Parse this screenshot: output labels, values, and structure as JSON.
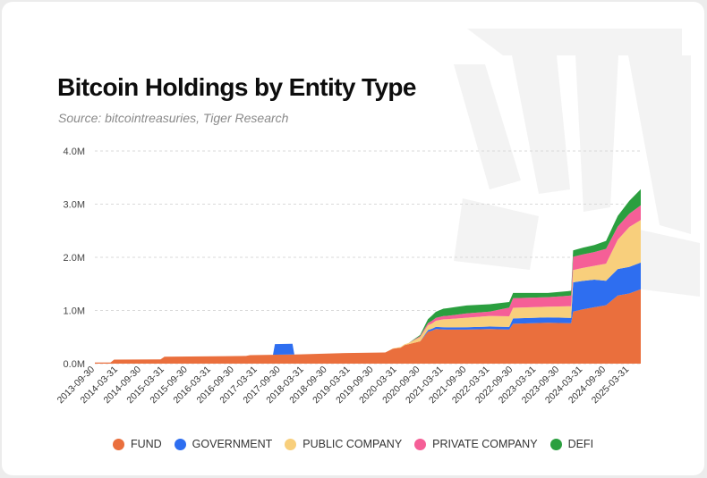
{
  "colors": {
    "FUND": "#ea6f3d",
    "GOVERNMENT": "#2e6ef0",
    "PUBLIC COMPANY": "#f8cf7c",
    "PRIVATE COMPANY": "#f55f97",
    "DEFI": "#2b9f3f"
  },
  "chart_data": {
    "type": "area",
    "stacked": true,
    "title": "Bitcoin Holdings by Entity Type",
    "subtitle": "Source: bitcointreasuries, Tiger Research",
    "xlabel": "",
    "ylabel": "",
    "ylim": [
      0,
      4000000
    ],
    "y_ticks": [
      0,
      1000000,
      2000000,
      3000000,
      4000000
    ],
    "y_tick_labels": [
      "0.0M",
      "1.0M",
      "2.0M",
      "3.0M",
      "4.0M"
    ],
    "x_tick_labels": [
      "2013-09-30",
      "2014-03-31",
      "2014-09-30",
      "2015-03-31",
      "2015-09-30",
      "2016-03-31",
      "2016-09-30",
      "2017-03-31",
      "2017-09-30",
      "2018-03-31",
      "2018-09-30",
      "2019-03-31",
      "2019-09-30",
      "2020-03-31",
      "2020-09-30",
      "2021-03-31",
      "2021-09-30",
      "2022-03-31",
      "2022-09-30",
      "2023-03-31",
      "2023-09-30",
      "2024-03-31",
      "2024-09-30",
      "2025-03-31"
    ],
    "x_range": [
      "2013-09-30",
      "2025-06-30"
    ],
    "grid": "horizontal-dashed",
    "legend_position": "bottom",
    "series": [
      {
        "name": "FUND",
        "points": [
          [
            "2013-09-30",
            20000
          ],
          [
            "2014-01-31",
            20000
          ],
          [
            "2014-02-28",
            75000
          ],
          [
            "2015-02-28",
            80000
          ],
          [
            "2015-03-31",
            130000
          ],
          [
            "2016-12-31",
            145000
          ],
          [
            "2017-01-31",
            160000
          ],
          [
            "2018-02-28",
            175000
          ],
          [
            "2019-02-28",
            200000
          ],
          [
            "2019-12-31",
            210000
          ],
          [
            "2020-02-29",
            280000
          ],
          [
            "2020-04-30",
            300000
          ],
          [
            "2020-05-31",
            350000
          ],
          [
            "2020-09-30",
            420000
          ],
          [
            "2020-11-30",
            600000
          ],
          [
            "2020-12-31",
            620000
          ],
          [
            "2021-01-31",
            650000
          ],
          [
            "2021-04-30",
            640000
          ],
          [
            "2021-09-30",
            640000
          ],
          [
            "2022-03-31",
            650000
          ],
          [
            "2022-08-31",
            640000
          ],
          [
            "2022-09-30",
            750000
          ],
          [
            "2023-06-30",
            770000
          ],
          [
            "2023-12-31",
            760000
          ],
          [
            "2024-01-15",
            980000
          ],
          [
            "2024-03-31",
            1020000
          ],
          [
            "2024-06-30",
            1060000
          ],
          [
            "2024-09-30",
            1100000
          ],
          [
            "2024-12-31",
            1280000
          ],
          [
            "2025-03-31",
            1320000
          ],
          [
            "2025-06-30",
            1400000
          ]
        ]
      },
      {
        "name": "GOVERNMENT",
        "points": [
          [
            "2013-09-30",
            0
          ],
          [
            "2017-07-31",
            0
          ],
          [
            "2017-08-15",
            200000
          ],
          [
            "2017-12-31",
            200000
          ],
          [
            "2018-01-15",
            0
          ],
          [
            "2020-09-30",
            0
          ],
          [
            "2020-11-30",
            30000
          ],
          [
            "2021-01-31",
            40000
          ],
          [
            "2022-08-31",
            50000
          ],
          [
            "2022-09-30",
            100000
          ],
          [
            "2023-12-31",
            100000
          ],
          [
            "2024-01-15",
            550000
          ],
          [
            "2024-06-30",
            520000
          ],
          [
            "2024-09-30",
            460000
          ],
          [
            "2024-12-31",
            500000
          ],
          [
            "2025-03-31",
            500000
          ],
          [
            "2025-06-30",
            500000
          ]
        ]
      },
      {
        "name": "PUBLIC COMPANY",
        "points": [
          [
            "2013-09-30",
            0
          ],
          [
            "2019-12-31",
            0
          ],
          [
            "2020-06-30",
            20000
          ],
          [
            "2020-09-30",
            80000
          ],
          [
            "2020-12-31",
            100000
          ],
          [
            "2021-03-31",
            150000
          ],
          [
            "2021-09-30",
            180000
          ],
          [
            "2022-03-31",
            200000
          ],
          [
            "2022-09-30",
            200000
          ],
          [
            "2023-06-30",
            200000
          ],
          [
            "2023-12-31",
            220000
          ],
          [
            "2024-01-15",
            230000
          ],
          [
            "2024-06-30",
            260000
          ],
          [
            "2024-09-30",
            320000
          ],
          [
            "2024-12-31",
            550000
          ],
          [
            "2025-03-31",
            750000
          ],
          [
            "2025-06-30",
            800000
          ]
        ]
      },
      {
        "name": "PRIVATE COMPANY",
        "points": [
          [
            "2013-09-30",
            0
          ],
          [
            "2020-06-30",
            0
          ],
          [
            "2020-09-30",
            20000
          ],
          [
            "2020-12-31",
            50000
          ],
          [
            "2021-03-31",
            60000
          ],
          [
            "2021-09-30",
            80000
          ],
          [
            "2022-03-31",
            80000
          ],
          [
            "2022-09-30",
            180000
          ],
          [
            "2023-06-30",
            180000
          ],
          [
            "2023-12-31",
            200000
          ],
          [
            "2024-01-15",
            250000
          ],
          [
            "2024-06-30",
            260000
          ],
          [
            "2024-09-30",
            280000
          ],
          [
            "2024-12-31",
            250000
          ],
          [
            "2025-03-31",
            250000
          ],
          [
            "2025-06-30",
            280000
          ]
        ]
      },
      {
        "name": "DEFI",
        "points": [
          [
            "2013-09-30",
            0
          ],
          [
            "2020-06-30",
            0
          ],
          [
            "2020-09-30",
            20000
          ],
          [
            "2020-12-31",
            100000
          ],
          [
            "2021-03-31",
            140000
          ],
          [
            "2021-09-30",
            150000
          ],
          [
            "2022-03-31",
            140000
          ],
          [
            "2022-09-30",
            100000
          ],
          [
            "2023-06-30",
            80000
          ],
          [
            "2023-12-31",
            90000
          ],
          [
            "2024-01-15",
            120000
          ],
          [
            "2024-06-30",
            130000
          ],
          [
            "2024-09-30",
            150000
          ],
          [
            "2024-12-31",
            200000
          ],
          [
            "2025-03-31",
            240000
          ],
          [
            "2025-06-30",
            300000
          ]
        ]
      }
    ]
  }
}
